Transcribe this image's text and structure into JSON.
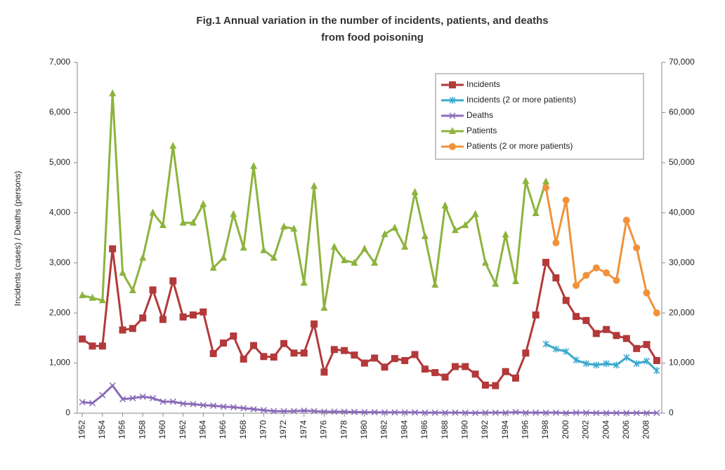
{
  "chart_data": {
    "type": "line",
    "title": [
      "Fig.1 Annual variation in the number of incidents, patients, and deaths",
      "from food poisoning"
    ],
    "ylabel": "Incidents (cases) / Deaths (persons)",
    "x": [
      1952,
      1953,
      1954,
      1955,
      1956,
      1957,
      1958,
      1959,
      1960,
      1961,
      1962,
      1963,
      1964,
      1965,
      1966,
      1967,
      1968,
      1969,
      1970,
      1971,
      1972,
      1973,
      1974,
      1975,
      1976,
      1977,
      1978,
      1979,
      1980,
      1981,
      1982,
      1983,
      1984,
      1985,
      1986,
      1987,
      1988,
      1989,
      1990,
      1991,
      1992,
      1993,
      1994,
      1995,
      1996,
      1997,
      1998,
      1999,
      2000,
      2001,
      2002,
      2003,
      2004,
      2005,
      2006,
      2007,
      2008,
      2009
    ],
    "xlim": [
      1951.5,
      2009.5
    ],
    "xticks": [
      1952,
      1954,
      1956,
      1958,
      1960,
      1962,
      1964,
      1966,
      1968,
      1970,
      1972,
      1974,
      1976,
      1978,
      1980,
      1982,
      1984,
      1986,
      1988,
      1990,
      1992,
      1994,
      1996,
      1998,
      2000,
      2002,
      2004,
      2006,
      2008
    ],
    "ylim": [
      0,
      7000
    ],
    "yticks": [
      0,
      {
        "value": 1000,
        "label": "1,000"
      },
      {
        "value": 2000,
        "label": "2,000"
      },
      {
        "value": 3000,
        "label": "3,000"
      },
      {
        "value": 4000,
        "label": "4,000"
      },
      {
        "value": 5000,
        "label": "5,000"
      },
      {
        "value": 6000,
        "label": "6,000"
      },
      {
        "value": 7000,
        "label": "7,000"
      }
    ],
    "y2lim": [
      0,
      70000
    ],
    "y2ticks": [
      0,
      {
        "value": 10000,
        "label": "10,000"
      },
      {
        "value": 20000,
        "label": "20,000"
      },
      {
        "value": 30000,
        "label": "30,000"
      },
      {
        "value": 40000,
        "label": "40,000"
      },
      {
        "value": 50000,
        "label": "50,000"
      },
      {
        "value": 60000,
        "label": "60,000"
      },
      {
        "value": 70000,
        "label": "70,000"
      }
    ],
    "legend": "upper right",
    "series": [
      {
        "name": "Incidents",
        "color": "#b3393a",
        "marker": "square",
        "values": [
          1480,
          1340,
          1340,
          3280,
          1660,
          1690,
          1900,
          2460,
          1870,
          2640,
          1920,
          1960,
          2020,
          1190,
          1400,
          1540,
          1080,
          1350,
          1130,
          1120,
          1390,
          1200,
          1200,
          1780,
          820,
          1270,
          1250,
          1160,
          1000,
          1100,
          920,
          1090,
          1050,
          1170,
          880,
          810,
          720,
          930,
          930,
          780,
          560,
          550,
          830,
          700,
          1200,
          1960,
          3010,
          2700,
          2250,
          1930,
          1850,
          1590,
          1670,
          1550,
          1490,
          1290,
          1370,
          1050
        ]
      },
      {
        "name": "Incidents (2 or more patients)",
        "color": "#3ba8cc",
        "marker": "star",
        "values": [
          null,
          null,
          null,
          null,
          null,
          null,
          null,
          null,
          null,
          null,
          null,
          null,
          null,
          null,
          null,
          null,
          null,
          null,
          null,
          null,
          null,
          null,
          null,
          null,
          null,
          null,
          null,
          null,
          null,
          null,
          null,
          null,
          null,
          null,
          null,
          null,
          null,
          null,
          null,
          null,
          null,
          null,
          null,
          null,
          null,
          null,
          1380,
          1280,
          1230,
          1060,
          990,
          960,
          990,
          960,
          1110,
          990,
          1040,
          850
        ]
      },
      {
        "name": "Deaths",
        "color": "#8a6bb8",
        "marker": "x",
        "values": [
          220,
          200,
          360,
          550,
          280,
          300,
          330,
          300,
          230,
          230,
          190,
          180,
          160,
          150,
          130,
          120,
          100,
          80,
          60,
          40,
          40,
          40,
          50,
          40,
          30,
          30,
          30,
          25,
          20,
          20,
          15,
          15,
          15,
          15,
          10,
          10,
          10,
          10,
          10,
          5,
          10,
          10,
          10,
          20,
          10,
          10,
          10,
          10,
          5,
          10,
          10,
          5,
          5,
          5,
          5,
          5,
          5,
          5
        ]
      },
      {
        "name": "Patients",
        "color": "#8db33d",
        "marker": "triangle",
        "axis": "y2",
        "values": [
          23500,
          23000,
          22500,
          63800,
          28000,
          24500,
          31000,
          40000,
          37500,
          53300,
          38000,
          38000,
          41700,
          29000,
          31000,
          39700,
          33000,
          49300,
          32500,
          31000,
          37200,
          36800,
          26000,
          45300,
          21000,
          33200,
          30500,
          30000,
          32800,
          30000,
          35700,
          37000,
          33200,
          44100,
          35300,
          25600,
          41400,
          36500,
          37500,
          39700,
          30000,
          25800,
          35600,
          26300,
          46300,
          39900,
          46200,
          null,
          null,
          null,
          null,
          null,
          null,
          null,
          null,
          null,
          null,
          null
        ]
      },
      {
        "name": "Patients (2 or more patients)",
        "color": "#f0923b",
        "marker": "circle",
        "axis": "y2",
        "values": [
          null,
          null,
          null,
          null,
          null,
          null,
          null,
          null,
          null,
          null,
          null,
          null,
          null,
          null,
          null,
          null,
          null,
          null,
          null,
          null,
          null,
          null,
          null,
          null,
          null,
          null,
          null,
          null,
          null,
          null,
          null,
          null,
          null,
          null,
          null,
          null,
          null,
          null,
          null,
          null,
          null,
          null,
          null,
          null,
          null,
          null,
          45000,
          34000,
          42500,
          25500,
          27500,
          29000,
          28000,
          26500,
          38500,
          33000,
          24000,
          20000
        ]
      }
    ]
  }
}
